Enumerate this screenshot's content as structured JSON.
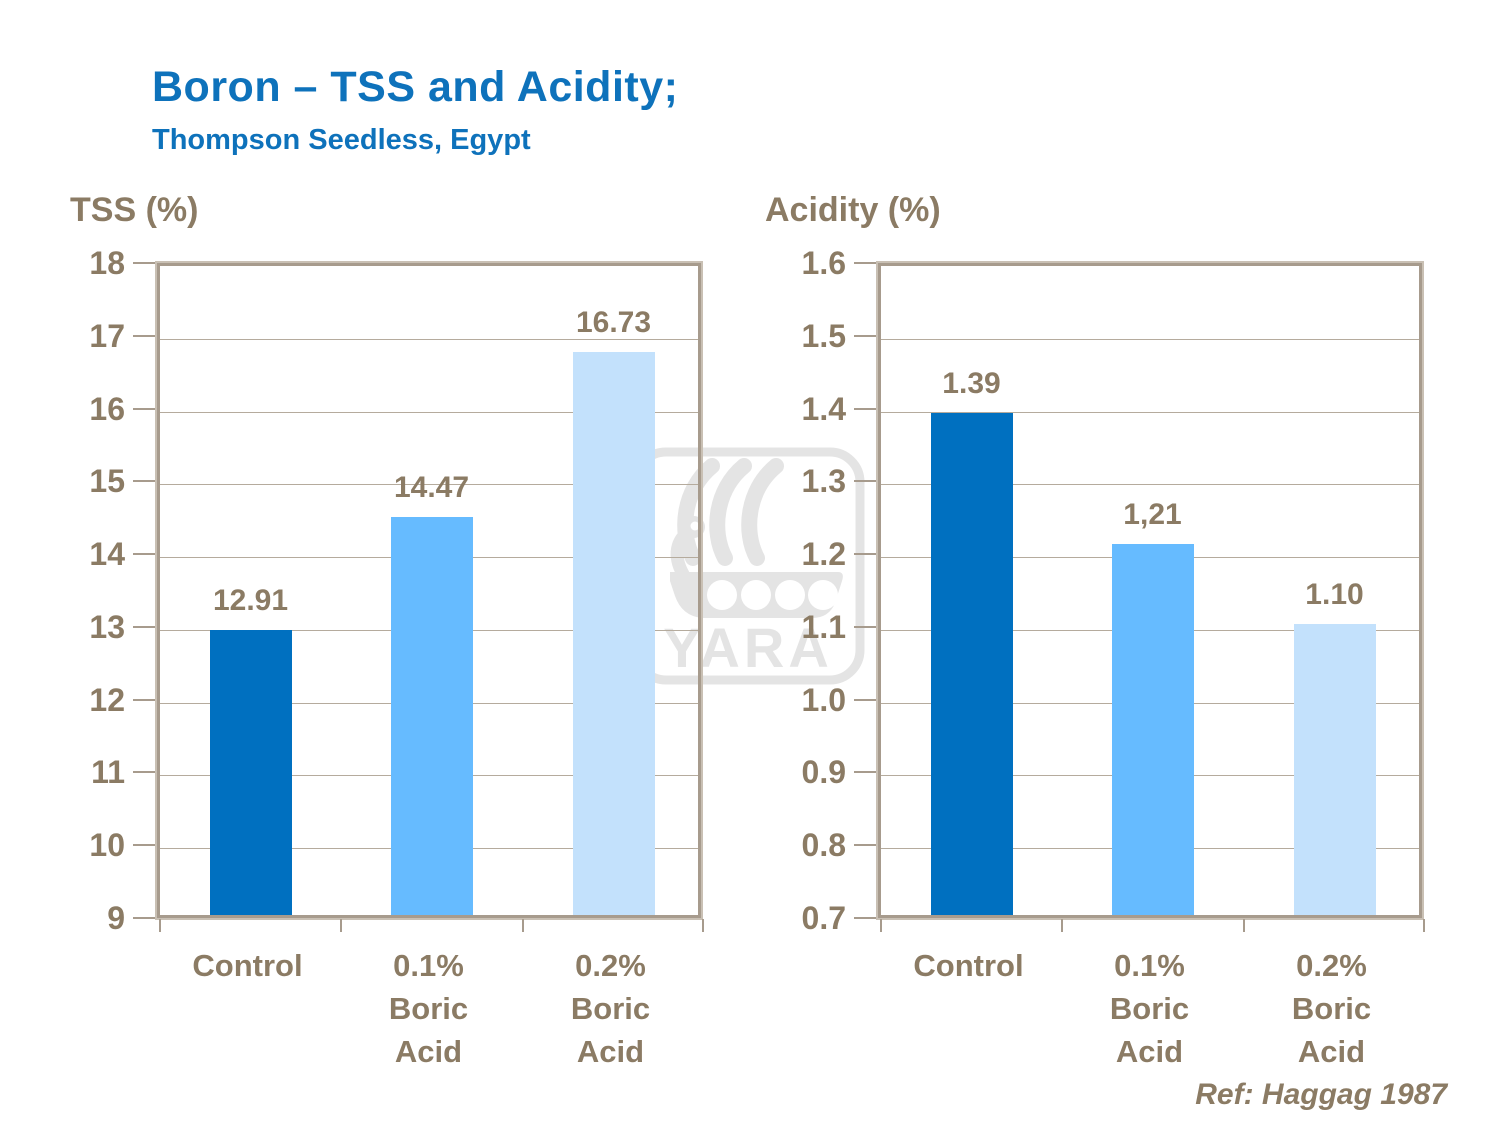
{
  "header": {
    "title": "Boron – TSS and Acidity;",
    "subtitle": "Thompson Seedless, Egypt"
  },
  "footer": {
    "ref": "Ref: Haggag 1987"
  },
  "watermark": {
    "text": "YARA",
    "icon": "viking-ship-icon",
    "color": "#e4e4e4"
  },
  "colors": {
    "title_blue": "#0e72bb",
    "text_brown": "#8b7b64",
    "frame": "#a79b8d",
    "gridline": "#b5ab9d",
    "bar_dark_blue": "#0070c0",
    "bar_medium_blue": "#66bbff",
    "bar_light_blue": "#c3e1fc"
  },
  "chart_data": [
    {
      "type": "bar",
      "axis_title": "TSS (%)",
      "categories": [
        "Control",
        "0.1%\nBoric\nAcid",
        "0.2%\nBoric\nAcid"
      ],
      "values": [
        12.91,
        14.47,
        16.73
      ],
      "value_labels": [
        "12.91",
        "14.47",
        "16.73"
      ],
      "ylim": [
        9,
        18
      ],
      "yticks": [
        "18",
        "17",
        "16",
        "15",
        "14",
        "13",
        "12",
        "11",
        "10",
        "9"
      ],
      "bar_colors": [
        "#0070c0",
        "#66bbff",
        "#c3e1fc"
      ],
      "grid": true,
      "legend": false
    },
    {
      "type": "bar",
      "axis_title": "Acidity (%)",
      "categories": [
        "Control",
        "0.1%\nBoric\nAcid",
        "0.2%\nBoric\nAcid"
      ],
      "values": [
        1.39,
        1.21,
        1.1
      ],
      "value_labels": [
        "1.39",
        "1,21",
        "1.10"
      ],
      "ylim": [
        0.7,
        1.6
      ],
      "yticks": [
        "1.6",
        "1.5",
        "1.4",
        "1.3",
        "1.2",
        "1.1",
        "1.0",
        "0.9",
        "0.8",
        "0.7"
      ],
      "bar_colors": [
        "#0070c0",
        "#66bbff",
        "#c3e1fc"
      ],
      "grid": true,
      "legend": false
    }
  ]
}
